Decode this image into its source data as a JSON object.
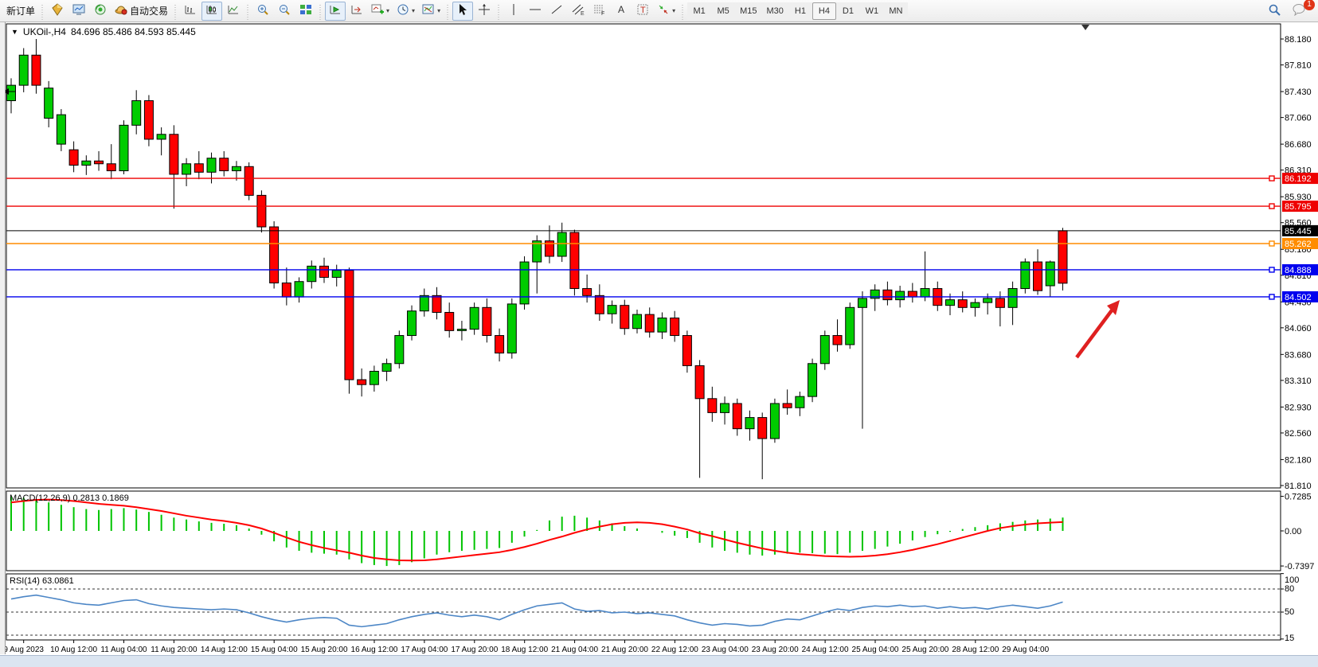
{
  "toolbar": {
    "new_order_label": "新订单",
    "auto_trading_label": "自动交易",
    "timeframes": [
      "M1",
      "M5",
      "M15",
      "M30",
      "H1",
      "H4",
      "D1",
      "W1",
      "MN"
    ],
    "active_timeframe": "H4",
    "notification_badge": "1"
  },
  "chart": {
    "symbol": "UKOil-",
    "timeframe": "H4",
    "title_symbol": "UKOil-,H4",
    "title_ohlc": "84.696 85.486 84.593 85.445",
    "open": 84.696,
    "high": 85.486,
    "low": 84.593,
    "close": 85.445
  },
  "chart_data": {
    "type": "candlestick",
    "title": "UKOil-,H4",
    "price_axis_ticks": [
      "88.180",
      "87.810",
      "87.430",
      "87.060",
      "86.680",
      "86.310",
      "85.930",
      "85.560",
      "85.180",
      "84.810",
      "84.430",
      "84.060",
      "83.680",
      "83.310",
      "82.930",
      "82.560",
      "82.180",
      "81.810"
    ],
    "time_labels": [
      "9 Aug 2023",
      "10 Aug 12:00",
      "11 Aug 04:00",
      "11 Aug 20:00",
      "14 Aug 12:00",
      "15 Aug 04:00",
      "15 Aug 20:00",
      "16 Aug 12:00",
      "17 Aug 04:00",
      "17 Aug 20:00",
      "18 Aug 12:00",
      "21 Aug 04:00",
      "21 Aug 20:00",
      "22 Aug 12:00",
      "23 Aug 04:00",
      "23 Aug 20:00",
      "24 Aug 12:00",
      "25 Aug 04:00",
      "25 Aug 20:00",
      "28 Aug 12:00",
      "29 Aug 04:00"
    ],
    "hlines": [
      {
        "label": "86.192",
        "value": 86.192,
        "color": "#ee0000"
      },
      {
        "label": "85.795",
        "value": 85.795,
        "color": "#ee0000"
      },
      {
        "label": "85.445",
        "value": 85.445,
        "color": "#000000",
        "current_price": true
      },
      {
        "label": "85.262",
        "value": 85.262,
        "color": "#ff8c00"
      },
      {
        "label": "84.888",
        "value": 84.888,
        "color": "#0000ee"
      },
      {
        "label": "84.502",
        "value": 84.502,
        "color": "#0000ee"
      }
    ],
    "candles": [
      [
        87.3,
        87.62,
        87.12,
        87.52
      ],
      [
        87.52,
        88.05,
        87.42,
        87.95
      ],
      [
        87.95,
        88.18,
        87.4,
        87.52
      ],
      [
        87.05,
        87.58,
        86.92,
        87.48
      ],
      [
        86.68,
        87.18,
        86.58,
        87.1
      ],
      [
        86.6,
        86.72,
        86.28,
        86.38
      ],
      [
        86.38,
        86.52,
        86.24,
        86.44
      ],
      [
        86.44,
        86.58,
        86.3,
        86.4
      ],
      [
        86.4,
        86.68,
        86.18,
        86.3
      ],
      [
        86.3,
        87.02,
        86.25,
        86.95
      ],
      [
        86.95,
        87.45,
        86.82,
        87.3
      ],
      [
        87.3,
        87.38,
        86.65,
        86.75
      ],
      [
        86.75,
        86.92,
        86.52,
        86.82
      ],
      [
        86.82,
        86.95,
        85.76,
        86.25
      ],
      [
        86.25,
        86.48,
        86.08,
        86.4
      ],
      [
        86.4,
        86.58,
        86.18,
        86.28
      ],
      [
        86.28,
        86.56,
        86.12,
        86.48
      ],
      [
        86.48,
        86.58,
        86.22,
        86.3
      ],
      [
        86.3,
        86.44,
        86.16,
        86.36
      ],
      [
        86.36,
        86.42,
        85.88,
        85.95
      ],
      [
        85.95,
        86.02,
        85.42,
        85.5
      ],
      [
        85.5,
        85.58,
        84.62,
        84.7
      ],
      [
        84.7,
        84.92,
        84.38,
        84.5
      ],
      [
        84.5,
        84.78,
        84.42,
        84.72
      ],
      [
        84.72,
        85.02,
        84.62,
        84.94
      ],
      [
        84.94,
        85.06,
        84.7,
        84.78
      ],
      [
        84.78,
        84.96,
        84.65,
        84.88
      ],
      [
        84.88,
        84.92,
        83.12,
        83.32
      ],
      [
        83.32,
        83.48,
        83.08,
        83.25
      ],
      [
        83.25,
        83.52,
        83.15,
        83.44
      ],
      [
        83.44,
        83.62,
        83.3,
        83.55
      ],
      [
        83.55,
        84.02,
        83.48,
        83.95
      ],
      [
        83.95,
        84.38,
        83.88,
        84.3
      ],
      [
        84.3,
        84.62,
        84.22,
        84.52
      ],
      [
        84.52,
        84.64,
        84.18,
        84.28
      ],
      [
        84.28,
        84.42,
        83.92,
        84.02
      ],
      [
        84.02,
        84.16,
        83.88,
        84.04
      ],
      [
        84.04,
        84.42,
        83.96,
        84.35
      ],
      [
        84.35,
        84.48,
        83.85,
        83.95
      ],
      [
        83.95,
        84.05,
        83.58,
        83.7
      ],
      [
        83.7,
        84.48,
        83.62,
        84.4
      ],
      [
        84.4,
        85.08,
        84.32,
        85.0
      ],
      [
        85.0,
        85.38,
        84.55,
        85.3
      ],
      [
        85.3,
        85.52,
        84.98,
        85.08
      ],
      [
        85.08,
        85.56,
        85.0,
        85.42
      ],
      [
        85.42,
        85.46,
        84.52,
        84.62
      ],
      [
        84.62,
        84.82,
        84.42,
        84.52
      ],
      [
        84.52,
        84.68,
        84.16,
        84.26
      ],
      [
        84.26,
        84.45,
        84.12,
        84.38
      ],
      [
        84.38,
        84.46,
        83.96,
        84.05
      ],
      [
        84.05,
        84.32,
        83.98,
        84.25
      ],
      [
        84.25,
        84.35,
        83.92,
        84.0
      ],
      [
        84.0,
        84.28,
        83.9,
        84.2
      ],
      [
        84.2,
        84.3,
        83.86,
        83.95
      ],
      [
        83.95,
        84.02,
        83.42,
        83.52
      ],
      [
        83.52,
        83.6,
        81.92,
        83.05
      ],
      [
        83.05,
        83.22,
        82.72,
        82.85
      ],
      [
        82.85,
        83.08,
        82.68,
        82.98
      ],
      [
        82.98,
        83.05,
        82.52,
        82.62
      ],
      [
        82.62,
        82.88,
        82.45,
        82.78
      ],
      [
        82.78,
        82.85,
        81.9,
        82.48
      ],
      [
        82.48,
        83.05,
        82.42,
        82.98
      ],
      [
        82.98,
        83.18,
        82.82,
        82.92
      ],
      [
        82.92,
        83.15,
        82.8,
        83.08
      ],
      [
        83.08,
        83.62,
        83.0,
        83.55
      ],
      [
        83.55,
        84.02,
        83.46,
        83.95
      ],
      [
        83.95,
        84.18,
        83.72,
        83.82
      ],
      [
        83.82,
        84.42,
        83.76,
        84.35
      ],
      [
        84.35,
        84.58,
        82.62,
        84.48
      ],
      [
        84.48,
        84.68,
        84.3,
        84.6
      ],
      [
        84.6,
        84.72,
        84.38,
        84.46
      ],
      [
        84.46,
        84.66,
        84.35,
        84.58
      ],
      [
        84.58,
        84.7,
        84.42,
        84.5
      ],
      [
        84.5,
        85.15,
        84.44,
        84.62
      ],
      [
        84.62,
        84.72,
        84.3,
        84.38
      ],
      [
        84.38,
        84.55,
        84.24,
        84.46
      ],
      [
        84.46,
        84.58,
        84.28,
        84.35
      ],
      [
        84.35,
        84.48,
        84.22,
        84.42
      ],
      [
        84.42,
        84.55,
        84.25,
        84.48
      ],
      [
        84.48,
        84.58,
        84.08,
        84.35
      ],
      [
        84.35,
        84.72,
        84.1,
        84.62
      ],
      [
        84.62,
        85.05,
        84.55,
        85.0
      ],
      [
        85.0,
        85.18,
        84.53,
        84.59
      ],
      [
        84.66,
        85.02,
        84.5,
        85.0
      ],
      [
        84.696,
        85.486,
        84.593,
        85.445,
        "R"
      ]
    ],
    "macd": {
      "label": "MACD(12,26,9)",
      "values_label": "0.2813 0.1869",
      "main_value": 0.2813,
      "signal_value": 0.1869,
      "axis_labels": [
        "0.7285",
        "0.00",
        "-0.7397"
      ],
      "axis_values": [
        0.7285,
        0.0,
        -0.7397
      ],
      "histogram": [
        0.7285,
        0.7,
        0.66,
        0.6,
        0.55,
        0.5,
        0.46,
        0.44,
        0.46,
        0.48,
        0.45,
        0.4,
        0.34,
        0.28,
        0.24,
        0.2,
        0.17,
        0.15,
        0.12,
        0.05,
        -0.08,
        -0.22,
        -0.35,
        -0.42,
        -0.46,
        -0.48,
        -0.5,
        -0.6,
        -0.68,
        -0.72,
        -0.7397,
        -0.72,
        -0.66,
        -0.58,
        -0.5,
        -0.45,
        -0.42,
        -0.4,
        -0.38,
        -0.36,
        -0.25,
        -0.12,
        0.02,
        0.22,
        0.3,
        0.32,
        0.28,
        0.22,
        0.16,
        0.1,
        0.05,
        0.0,
        -0.04,
        -0.1,
        -0.15,
        -0.25,
        -0.35,
        -0.42,
        -0.46,
        -0.5,
        -0.52,
        -0.5,
        -0.48,
        -0.46,
        -0.47,
        -0.48,
        -0.49,
        -0.46,
        -0.42,
        -0.38,
        -0.33,
        -0.27,
        -0.2,
        -0.13,
        -0.07,
        -0.02,
        0.04,
        0.08,
        0.12,
        0.16,
        0.19,
        0.22,
        0.24,
        0.26,
        0.2813
      ],
      "signal": [
        0.6,
        0.63,
        0.655,
        0.66,
        0.65,
        0.63,
        0.6,
        0.57,
        0.55,
        0.53,
        0.5,
        0.46,
        0.42,
        0.37,
        0.32,
        0.28,
        0.24,
        0.21,
        0.17,
        0.12,
        0.05,
        -0.04,
        -0.14,
        -0.23,
        -0.3,
        -0.36,
        -0.41,
        -0.46,
        -0.52,
        -0.57,
        -0.6,
        -0.62,
        -0.625,
        -0.62,
        -0.6,
        -0.57,
        -0.54,
        -0.51,
        -0.48,
        -0.45,
        -0.4,
        -0.34,
        -0.27,
        -0.19,
        -0.12,
        -0.04,
        0.03,
        0.09,
        0.14,
        0.17,
        0.18,
        0.17,
        0.14,
        0.09,
        0.03,
        -0.05,
        -0.11,
        -0.18,
        -0.25,
        -0.31,
        -0.37,
        -0.42,
        -0.46,
        -0.49,
        -0.51,
        -0.53,
        -0.54,
        -0.545,
        -0.54,
        -0.52,
        -0.49,
        -0.45,
        -0.4,
        -0.34,
        -0.28,
        -0.21,
        -0.14,
        -0.07,
        0.0,
        0.06,
        0.1,
        0.135,
        0.16,
        0.175,
        0.1869
      ]
    },
    "rsi": {
      "label": "RSI(14)",
      "value_label": "63.0861",
      "current_value": 63.0861,
      "axis_labels": [
        "100",
        "80",
        "50",
        "15"
      ],
      "level_lines": [
        80,
        50,
        20
      ],
      "values": [
        67,
        70,
        72,
        69,
        66,
        62,
        60,
        59,
        62,
        65,
        66,
        61,
        58,
        56,
        55,
        54,
        53,
        54,
        53,
        49,
        44,
        40,
        37,
        40,
        42,
        43,
        42,
        33,
        31,
        33,
        35,
        40,
        44,
        47,
        49,
        46,
        44,
        46,
        44,
        40,
        47,
        53,
        58,
        60,
        62,
        54,
        51,
        52,
        49,
        50,
        48,
        49,
        47,
        45,
        40,
        36,
        33,
        35,
        34,
        32,
        33,
        38,
        41,
        40,
        45,
        50,
        54,
        52,
        56,
        58,
        57,
        59,
        57,
        58,
        55,
        57,
        55,
        56,
        54,
        57,
        59,
        57,
        55,
        58,
        63.09
      ]
    },
    "colors": {
      "bull": "#00cc00",
      "bear": "#ff0000",
      "wick": "#000000",
      "macd_histogram": "#00c400",
      "macd_signal": "#ff0000",
      "rsi_line": "#4c86c6",
      "annotation_arrow": "#df2020"
    }
  },
  "annotation": {
    "type": "arrow",
    "direction": "up-right",
    "color": "#df2020"
  }
}
